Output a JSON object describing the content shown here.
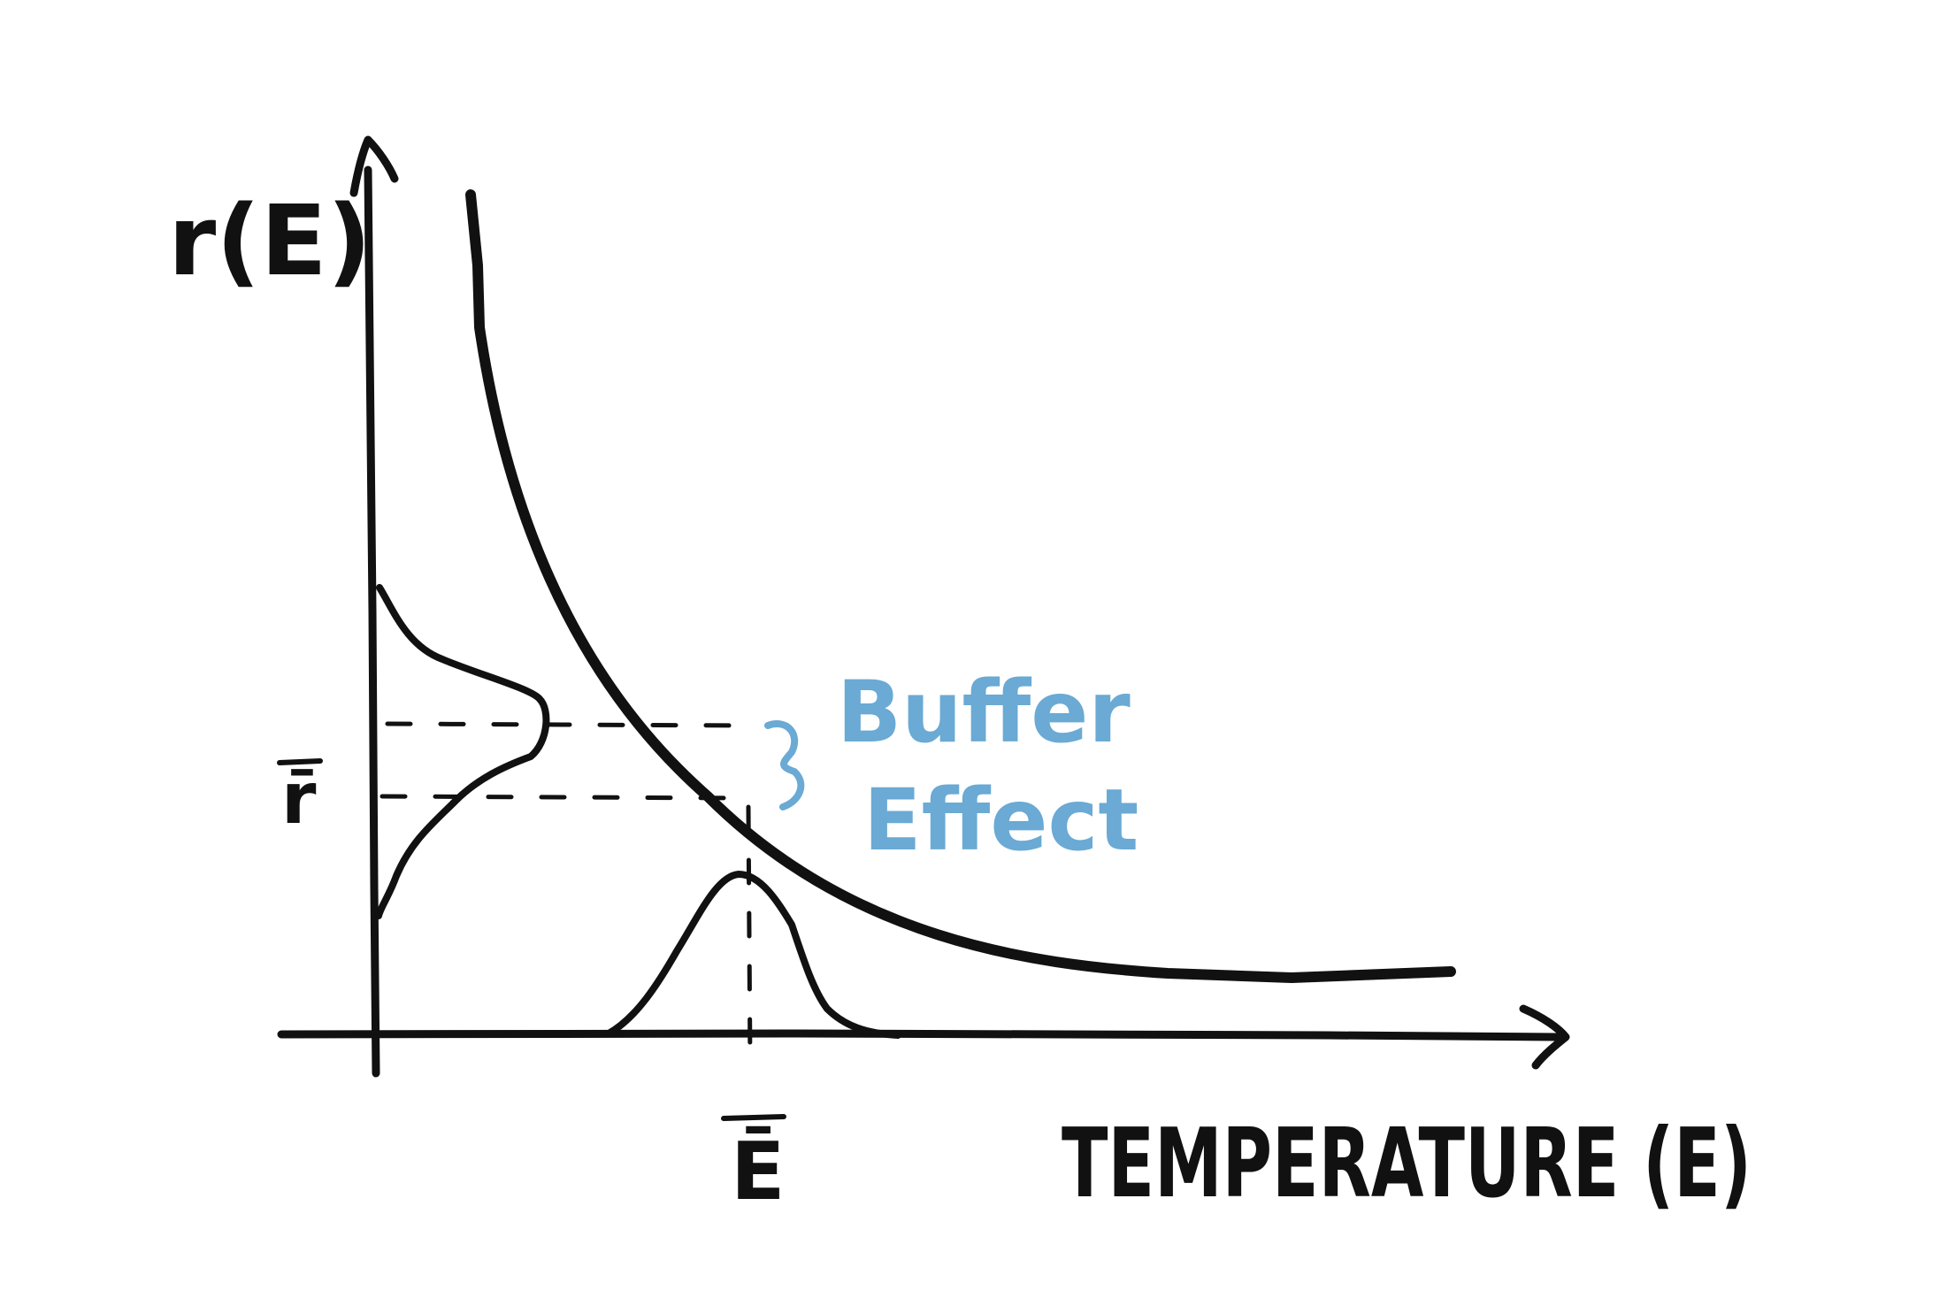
{
  "diagram": {
    "y_axis_label": "r(E)",
    "x_axis_label": "TEMPERATURE (E)",
    "y_mark_label": "r̄",
    "x_mark_label": "Ē",
    "annotation": {
      "line1": "Buffer",
      "line2": "Effect",
      "color": "#6aaad4"
    },
    "ink_color": "#111111"
  }
}
